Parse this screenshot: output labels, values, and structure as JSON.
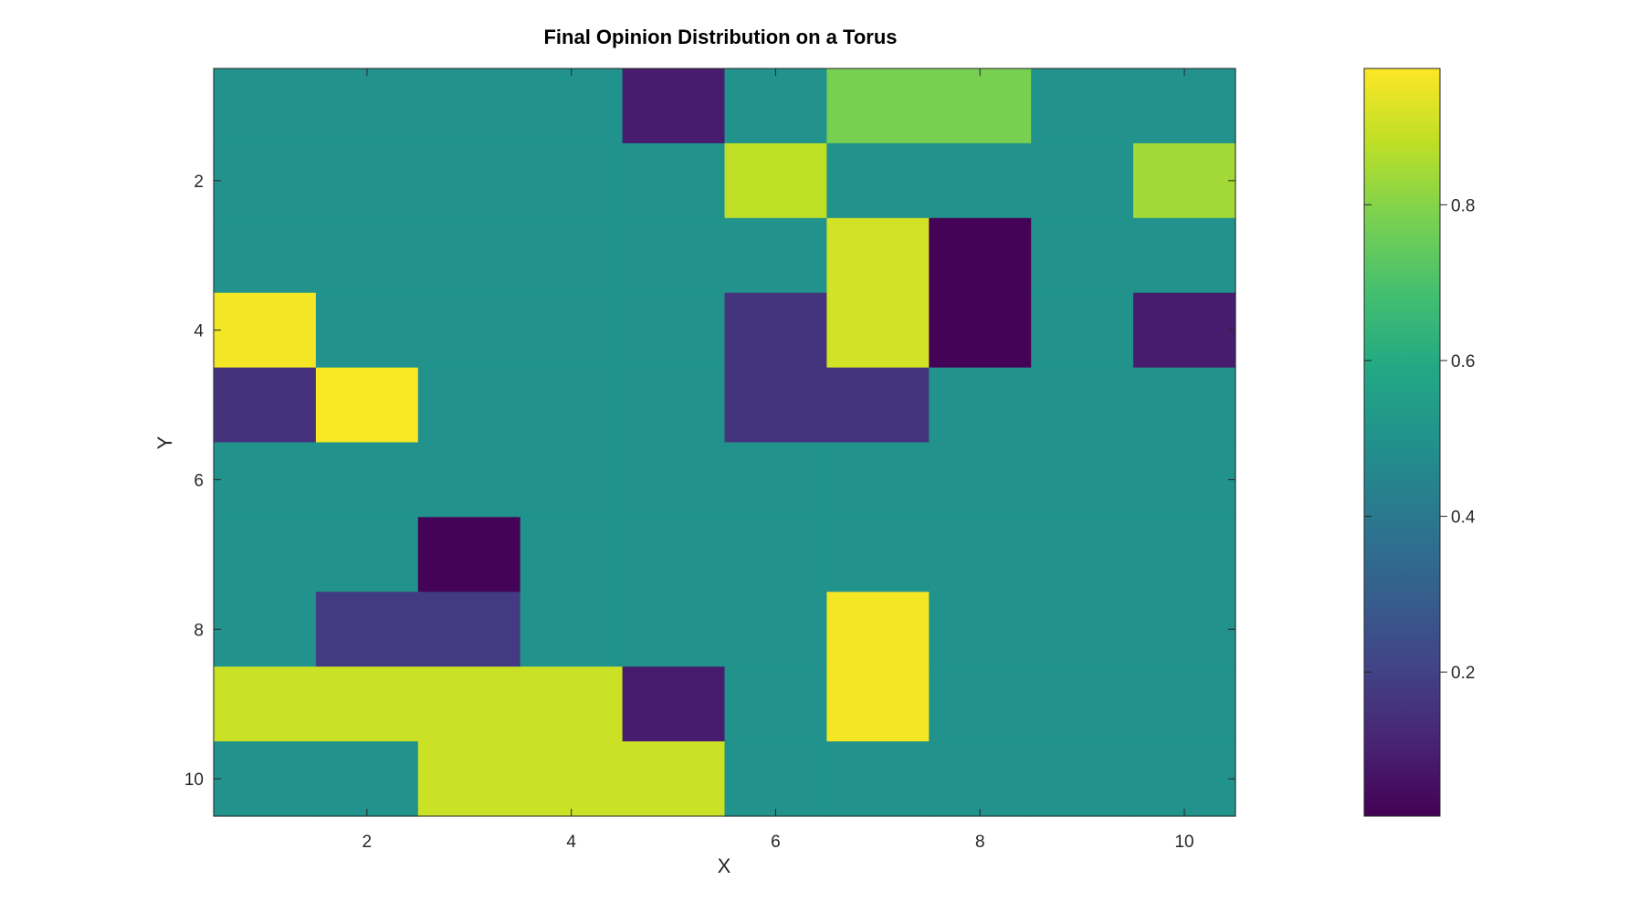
{
  "chart_data": {
    "type": "heatmap",
    "title": "Final Opinion Distribution on a Torus",
    "xlabel": "X",
    "ylabel": "Y",
    "x": [
      1,
      2,
      3,
      4,
      5,
      6,
      7,
      8,
      9,
      10
    ],
    "y": [
      1,
      2,
      3,
      4,
      5,
      6,
      7,
      8,
      9,
      10
    ],
    "y_direction": "reverse",
    "xlim": [
      0.5,
      10.5
    ],
    "ylim": [
      0.5,
      10.5
    ],
    "xticks": [
      2,
      4,
      6,
      8,
      10
    ],
    "yticks": [
      2,
      4,
      6,
      8,
      10
    ],
    "colormap": "viridis",
    "clim": [
      0.015,
      0.975
    ],
    "colorbar_ticks": [
      0.2,
      0.4,
      0.6,
      0.8
    ],
    "colorbar_tick_labels": [
      "0.2",
      "0.4",
      "0.6",
      "0.8"
    ],
    "grid": false,
    "values": [
      [
        0.5,
        0.5,
        0.5,
        0.5,
        0.09,
        0.5,
        0.78,
        0.78,
        0.5,
        0.5
      ],
      [
        0.5,
        0.5,
        0.5,
        0.5,
        0.5,
        0.88,
        0.5,
        0.5,
        0.5,
        0.84
      ],
      [
        0.5,
        0.5,
        0.5,
        0.5,
        0.5,
        0.5,
        0.91,
        0.02,
        0.5,
        0.5
      ],
      [
        0.96,
        0.5,
        0.5,
        0.5,
        0.5,
        0.16,
        0.91,
        0.02,
        0.5,
        0.09
      ],
      [
        0.15,
        0.97,
        0.5,
        0.5,
        0.5,
        0.16,
        0.16,
        0.5,
        0.5,
        0.5
      ],
      [
        0.5,
        0.5,
        0.5,
        0.5,
        0.5,
        0.5,
        0.5,
        0.5,
        0.5,
        0.5
      ],
      [
        0.5,
        0.5,
        0.02,
        0.5,
        0.5,
        0.5,
        0.5,
        0.5,
        0.5,
        0.5
      ],
      [
        0.5,
        0.18,
        0.18,
        0.5,
        0.5,
        0.5,
        0.96,
        0.5,
        0.5,
        0.5
      ],
      [
        0.9,
        0.9,
        0.9,
        0.9,
        0.09,
        0.5,
        0.96,
        0.5,
        0.5,
        0.5
      ],
      [
        0.5,
        0.5,
        0.9,
        0.9,
        0.9,
        0.5,
        0.5,
        0.5,
        0.5,
        0.5
      ]
    ]
  }
}
